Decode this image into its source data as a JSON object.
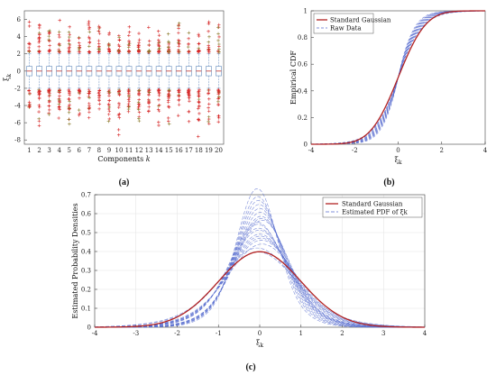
{
  "chart_data": [
    {
      "type": "box",
      "panel": "(a)",
      "xlabel": "Components k",
      "ylabel": "ξk",
      "categories": [
        "1",
        "2",
        "3",
        "4",
        "5",
        "6",
        "7",
        "8",
        "9",
        "10",
        "11",
        "12",
        "13",
        "14",
        "15",
        "16",
        "17",
        "18",
        "19",
        "20"
      ],
      "ylim": [
        -8.5,
        7
      ],
      "yticks": [
        6,
        4,
        2,
        0,
        -2,
        -4,
        -6,
        -8
      ],
      "box": {
        "q1": -0.55,
        "median": 0.0,
        "q3": 0.55,
        "whisker_low": -2.0,
        "whisker_high": 2.0
      },
      "outliers_upper_range": [
        2.2,
        5.9
      ],
      "outliers_lower_range": [
        -7.8,
        -2.2
      ],
      "colors": {
        "box": "#7a9cc6",
        "outlier": "#d62828",
        "outlier_alt": "#8a7a2a",
        "median": "#c4302b"
      }
    },
    {
      "type": "line",
      "panel": "(b)",
      "xlabel": "ξk",
      "ylabel": "Empirical CDF",
      "xlim": [
        -4,
        4
      ],
      "ylim": [
        0,
        1
      ],
      "xticks": [
        -4,
        -2,
        0,
        2,
        4
      ],
      "yticks": [
        0,
        0.2,
        0.4,
        0.6,
        0.8,
        1
      ],
      "legend": [
        "Standard Gaussian",
        "Raw Data"
      ],
      "legend_position": "top-left",
      "series": [
        {
          "name": "Standard Gaussian",
          "style": "solid",
          "color": "#b22222",
          "distribution": "normal",
          "sigma": 1.0
        },
        {
          "name": "Raw Data",
          "style": "dashed",
          "color": "#5a6fd0",
          "distribution": "laplace-like family",
          "scales": [
            0.55,
            0.58,
            0.6,
            0.62,
            0.64,
            0.66,
            0.68,
            0.7,
            0.72,
            0.75,
            0.78,
            0.8
          ]
        }
      ],
      "colors": {
        "gaussian": "#b22222",
        "raw": "#5a6fd0"
      }
    },
    {
      "type": "line",
      "panel": "(c)",
      "xlabel": "ξk",
      "ylabel": "Estimated Probability Densities",
      "xlim": [
        -4,
        4
      ],
      "ylim": [
        0,
        0.7
      ],
      "xticks": [
        -4,
        -3,
        -2,
        -1,
        0,
        1,
        2,
        3,
        4
      ],
      "yticks": [
        0,
        0.1,
        0.2,
        0.3,
        0.4,
        0.5,
        0.6,
        0.7
      ],
      "legend": [
        "Standard Gaussian",
        "Estimated PDF of ξk"
      ],
      "legend_position": "top-right",
      "grid": true,
      "series": [
        {
          "name": "Standard Gaussian",
          "style": "solid",
          "color": "#b22222",
          "distribution": "normal",
          "sigma": 1.0
        },
        {
          "name": "Estimated PDF of ξk",
          "style": "dashed",
          "color": "#5a6fd0",
          "peaks": [
            0.7,
            0.66,
            0.64,
            0.62,
            0.6,
            0.58,
            0.56,
            0.55,
            0.54,
            0.53,
            0.52,
            0.5,
            0.49,
            0.47,
            0.46,
            0.45,
            0.44,
            0.42,
            0.4,
            0.38
          ]
        }
      ],
      "colors": {
        "gaussian": "#b22222",
        "estimated": "#5a6fd0"
      }
    }
  ]
}
